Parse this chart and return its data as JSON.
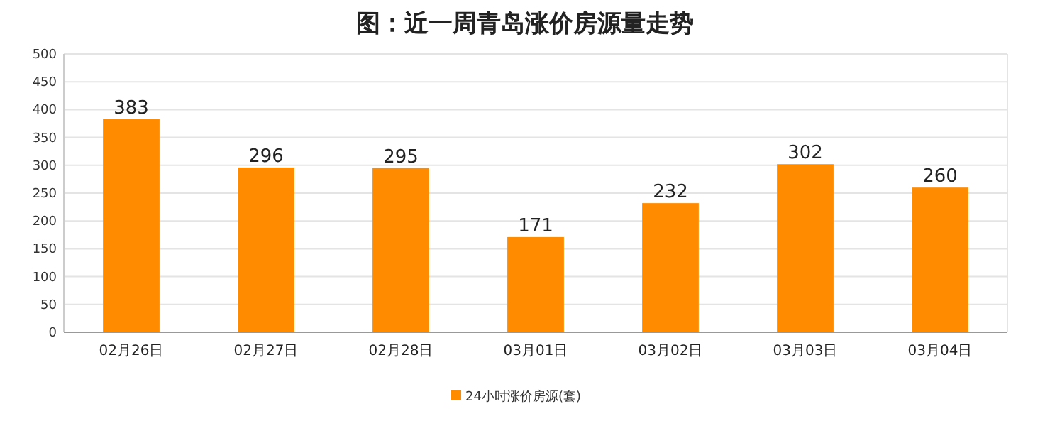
{
  "chart_data": {
    "type": "bar",
    "title": "图：近一周青岛涨价房源量走势",
    "categories": [
      "02月26日",
      "02月27日",
      "02月28日",
      "03月01日",
      "03月02日",
      "03月03日",
      "03月04日"
    ],
    "series": [
      {
        "name": "24小时涨价房源(套)",
        "color": "#ff8c00",
        "values": [
          383,
          296,
          295,
          171,
          232,
          302,
          260
        ]
      }
    ],
    "ylim": [
      0,
      500
    ],
    "yticks": [
      0,
      50,
      100,
      150,
      200,
      250,
      300,
      350,
      400,
      450,
      500
    ],
    "grid": "y",
    "legend": "bottom",
    "data_labels": true
  }
}
